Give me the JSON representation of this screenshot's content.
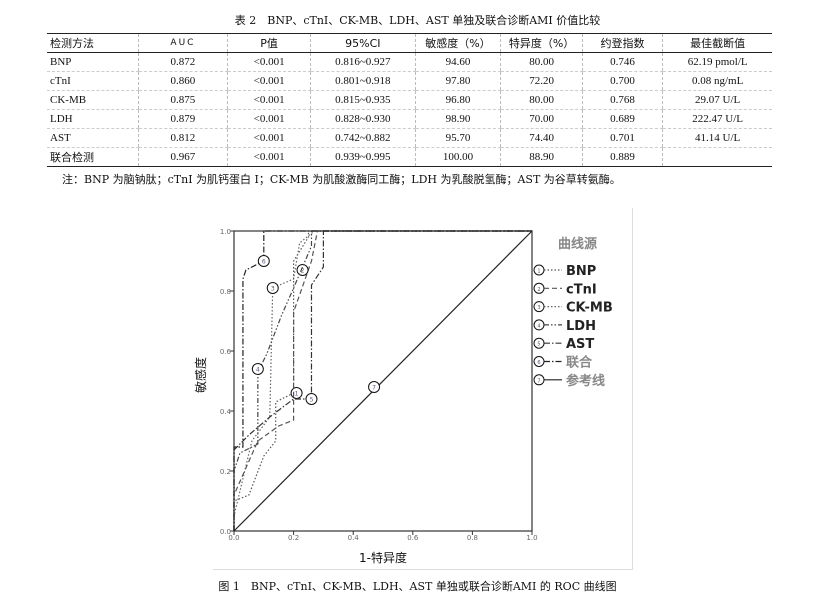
{
  "table": {
    "title": "表 2　BNP、cTnI、CK-MB、LDH、AST 单独及联合诊断AMI 价值比较",
    "headers": [
      "检测方法",
      "AUC",
      "P值",
      "95%CI",
      "敏感度（%）",
      "特异度（%）",
      "约登指数",
      "最佳截断值"
    ],
    "rows": [
      [
        "BNP",
        "0.872",
        "<0.001",
        "0.816~0.927",
        "94.60",
        "80.00",
        "0.746",
        "62.19 pmol/L"
      ],
      [
        "cTnI",
        "0.860",
        "<0.001",
        "0.801~0.918",
        "97.80",
        "72.20",
        "0.700",
        "0.08 ng/mL"
      ],
      [
        "CK-MB",
        "0.875",
        "<0.001",
        "0.815~0.935",
        "96.80",
        "80.00",
        "0.768",
        "29.07 U/L"
      ],
      [
        "LDH",
        "0.879",
        "<0.001",
        "0.828~0.930",
        "98.90",
        "70.00",
        "0.689",
        "222.47 U/L"
      ],
      [
        "AST",
        "0.812",
        "<0.001",
        "0.742~0.882",
        "95.70",
        "74.40",
        "0.701",
        "41.14 U/L"
      ],
      [
        "联合检测",
        "0.967",
        "<0.001",
        "0.939~0.995",
        "100.00",
        "88.90",
        "0.889",
        ""
      ]
    ],
    "note": "注：BNP 为脑钠肽；cTnI 为肌钙蛋白 I；CK-MB 为肌酸激酶同工酶；LDH 为乳酸脱氢酶；AST 为谷草转氨酶。"
  },
  "figure": {
    "caption": "图 1　BNP、cTnI、CK-MB、LDH、AST 单独或联合诊断AMI 的 ROC 曲线图"
  },
  "chart_data": {
    "type": "line",
    "xlabel": "1-特异度",
    "ylabel": "敏感度",
    "xlim": [
      0,
      1
    ],
    "ylim": [
      0,
      1
    ],
    "xticks": [
      "0.0",
      "0.2",
      "0.4",
      "0.6",
      "0.8",
      "1.0"
    ],
    "yticks": [
      "0.0",
      "0.2",
      "0.4",
      "0.6",
      "0.8",
      "1.0"
    ],
    "legend_title": "曲线源",
    "legend_placement": "right",
    "series": [
      {
        "name": "BNP",
        "marker": "1",
        "label_at": [
          0.21,
          0.46
        ],
        "style": "dotted",
        "color": "#555555",
        "points": [
          [
            0,
            0
          ],
          [
            0,
            0.1
          ],
          [
            0.05,
            0.12
          ],
          [
            0.1,
            0.25
          ],
          [
            0.14,
            0.3
          ],
          [
            0.14,
            0.43
          ],
          [
            0.2,
            0.46
          ],
          [
            0.2,
            0.9
          ],
          [
            0.25,
            0.98
          ],
          [
            0.25,
            1
          ],
          [
            1,
            1
          ]
        ]
      },
      {
        "name": "cTnI",
        "marker": "2",
        "label_at": [
          0.23,
          0.87
        ],
        "style": "dashed",
        "color": "#555555",
        "points": [
          [
            0,
            0
          ],
          [
            0,
            0.12
          ],
          [
            0.08,
            0.3
          ],
          [
            0.15,
            0.35
          ],
          [
            0.2,
            0.37
          ],
          [
            0.2,
            0.73
          ],
          [
            0.26,
            0.9
          ],
          [
            0.28,
            1
          ],
          [
            1,
            1
          ]
        ]
      },
      {
        "name": "CK-MB",
        "marker": "3",
        "label_at": [
          0.13,
          0.81
        ],
        "style": "dotted",
        "color": "#666666",
        "points": [
          [
            0,
            0
          ],
          [
            0,
            0.05
          ],
          [
            0.06,
            0.3
          ],
          [
            0.12,
            0.38
          ],
          [
            0.13,
            0.81
          ],
          [
            0.2,
            0.84
          ],
          [
            0.22,
            0.96
          ],
          [
            0.27,
            1
          ],
          [
            1,
            1
          ]
        ]
      },
      {
        "name": "LDH",
        "marker": "4",
        "label_at": [
          0.08,
          0.54
        ],
        "style": "dashdotdot",
        "color": "#444444",
        "points": [
          [
            0,
            0
          ],
          [
            0,
            0.2
          ],
          [
            0.02,
            0.26
          ],
          [
            0.08,
            0.29
          ],
          [
            0.08,
            0.53
          ],
          [
            0.11,
            0.59
          ],
          [
            0.16,
            0.72
          ],
          [
            0.2,
            0.81
          ],
          [
            0.26,
            0.95
          ],
          [
            0.26,
            1
          ],
          [
            1,
            1
          ]
        ]
      },
      {
        "name": "AST",
        "marker": "5",
        "label_at": [
          0.26,
          0.44
        ],
        "style": "dashdot",
        "color": "#333333",
        "points": [
          [
            0,
            0
          ],
          [
            0,
            0.27
          ],
          [
            0.05,
            0.32
          ],
          [
            0.12,
            0.38
          ],
          [
            0.2,
            0.44
          ],
          [
            0.26,
            0.44
          ],
          [
            0.26,
            0.82
          ],
          [
            0.3,
            0.88
          ],
          [
            0.3,
            1
          ],
          [
            1,
            1
          ]
        ]
      },
      {
        "name": "联合",
        "marker": "6",
        "label_at": [
          0.1,
          0.9
        ],
        "style": "dashdot",
        "color": "#222222",
        "points": [
          [
            0,
            0
          ],
          [
            0,
            0.28
          ],
          [
            0.03,
            0.28
          ],
          [
            0.03,
            0.84
          ],
          [
            0.04,
            0.87
          ],
          [
            0.1,
            0.9
          ],
          [
            0.1,
            1
          ],
          [
            1,
            1
          ]
        ]
      },
      {
        "name": "参考线",
        "marker": "7",
        "label_at": [
          0.47,
          0.48
        ],
        "style": "solid",
        "color": "#222222",
        "points": [
          [
            0,
            0
          ],
          [
            1,
            1
          ]
        ]
      }
    ]
  }
}
